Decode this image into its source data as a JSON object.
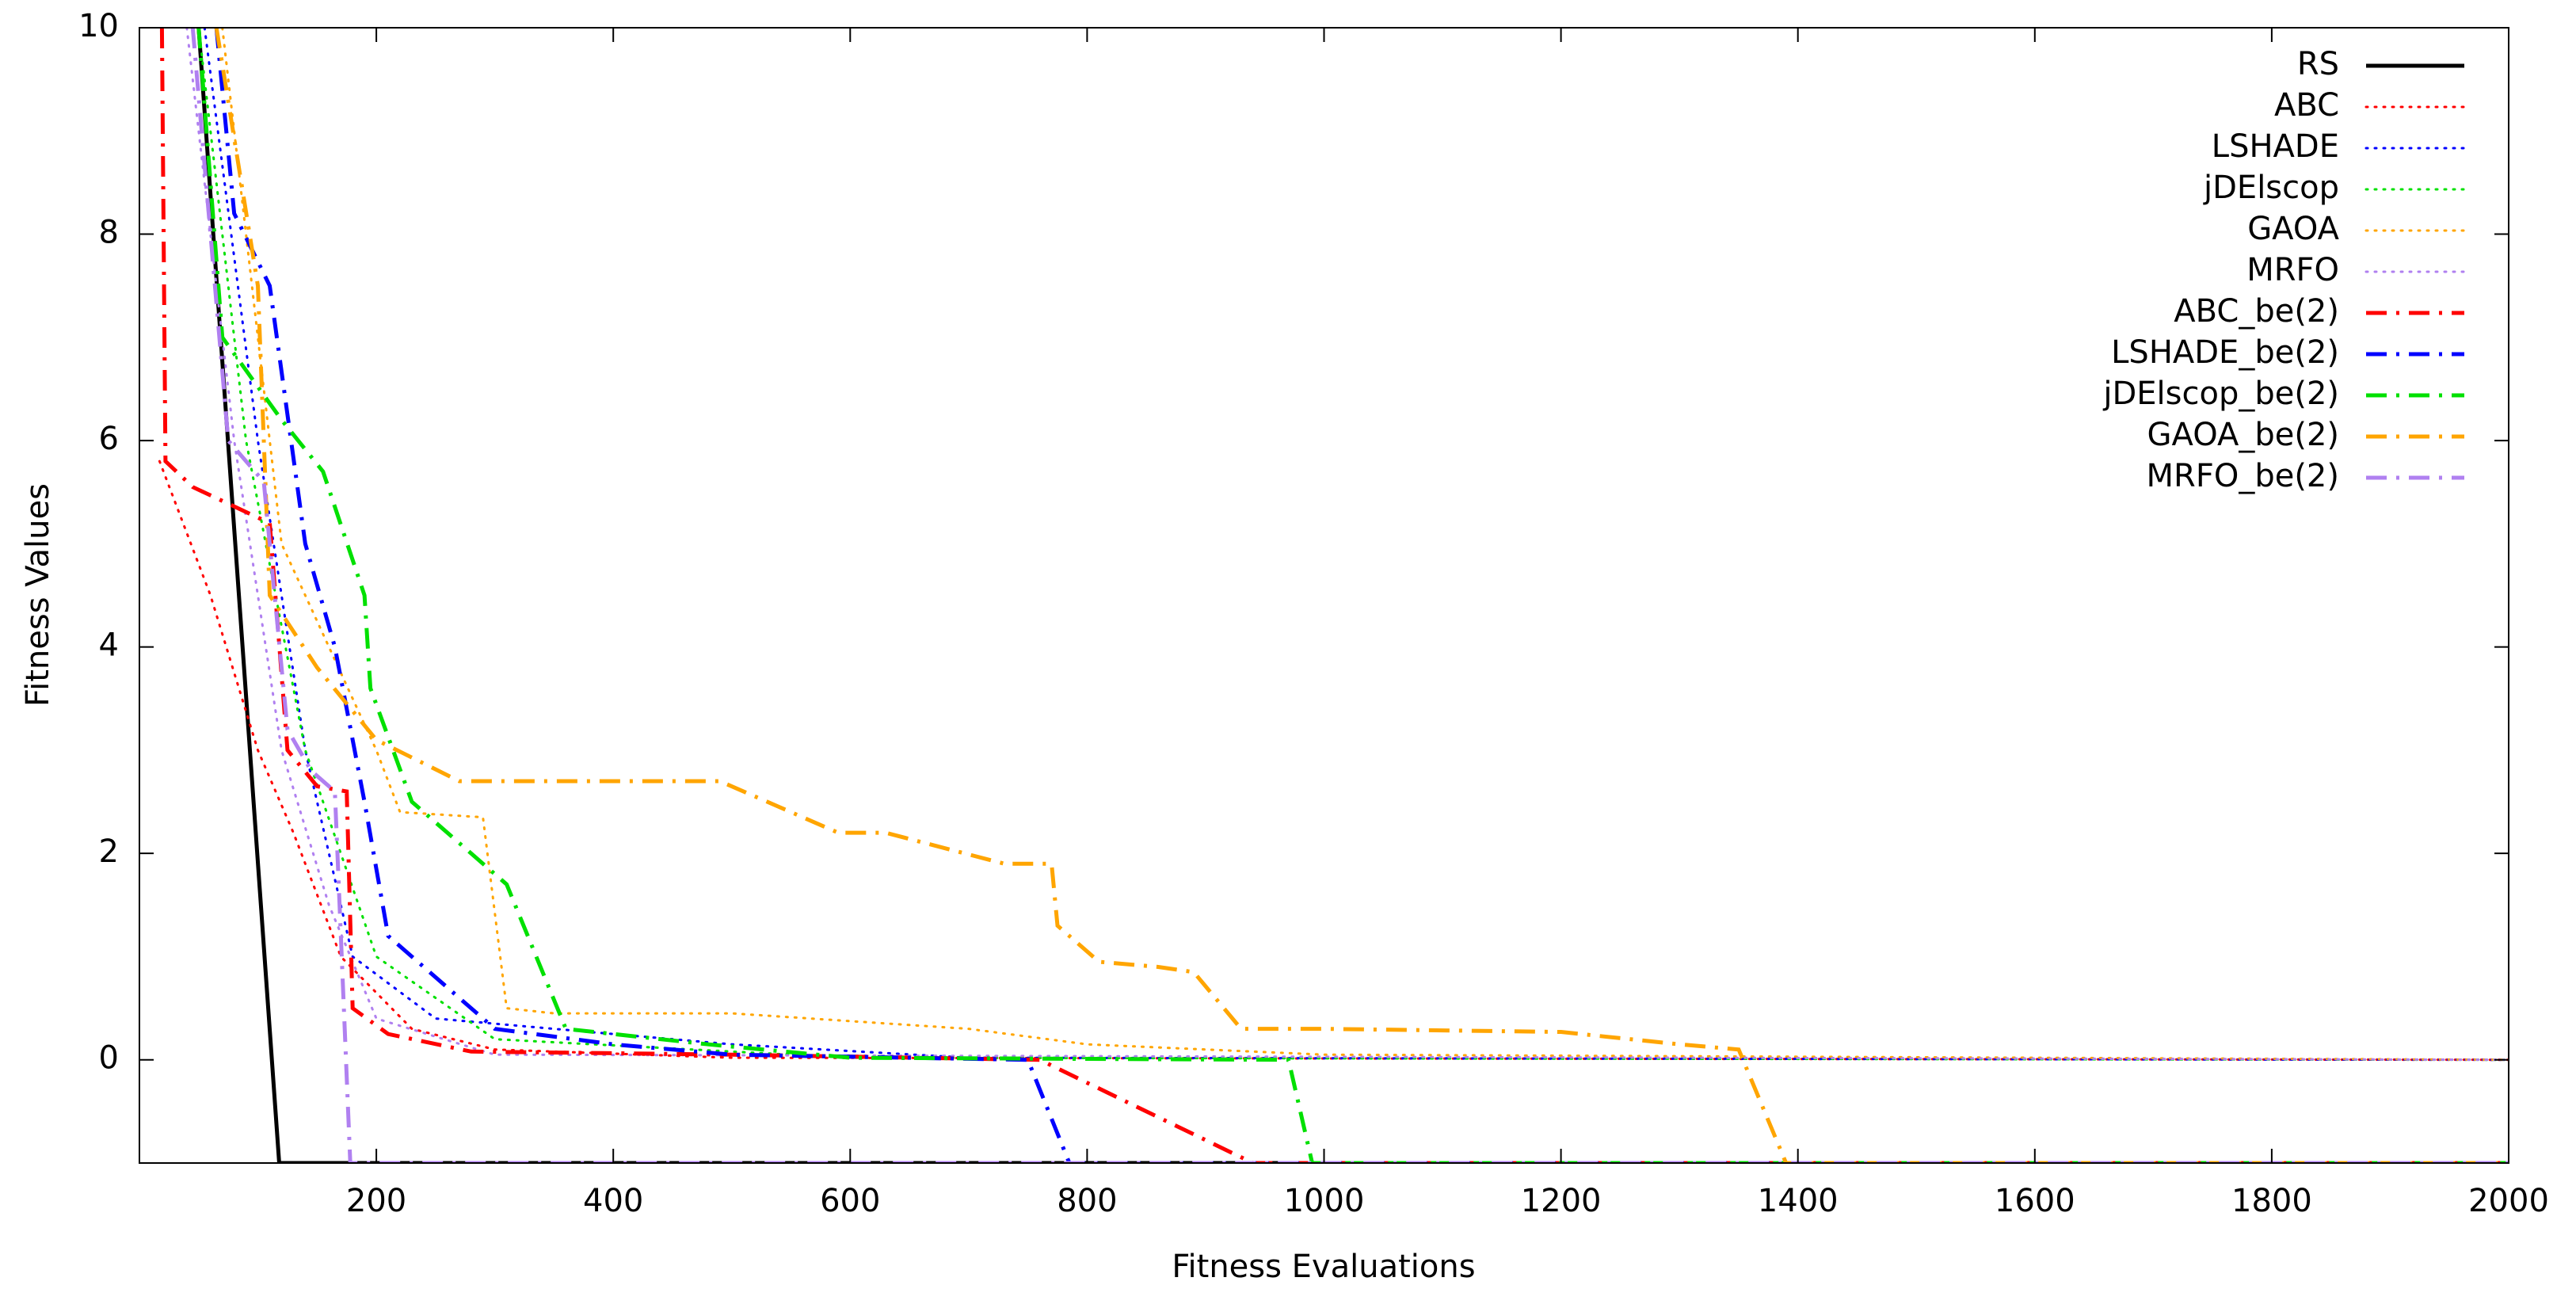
{
  "chart_data": {
    "type": "line",
    "xlabel": "Fitness Evaluations",
    "ylabel": "Fitness Values",
    "xlim": [
      0,
      2000
    ],
    "xticks": [
      200,
      400,
      600,
      800,
      1000,
      1200,
      1400,
      1600,
      1800,
      2000
    ],
    "ylim": [
      -1,
      10
    ],
    "yticks": [
      0,
      2,
      4,
      6,
      8,
      10
    ],
    "legend": "top-right",
    "series": [
      {
        "name": "RS",
        "color": "#000000",
        "style": "solid",
        "x": [
          50,
          118,
          2000
        ],
        "values": [
          10,
          -1,
          -1
        ]
      },
      {
        "name": "ABC",
        "color": "#ff0000",
        "style": "dotted",
        "x": [
          17,
          60,
          100,
          130,
          170,
          230,
          300,
          500,
          2000
        ],
        "values": [
          5.8,
          4.5,
          3.0,
          2.2,
          1.0,
          0.3,
          0.1,
          0.02,
          0
        ]
      },
      {
        "name": "LSHADE",
        "color": "#0000ff",
        "style": "dotted",
        "x": [
          55,
          100,
          140,
          180,
          250,
          400,
          500,
          700,
          2000
        ],
        "values": [
          10,
          6,
          3,
          1.0,
          0.4,
          0.25,
          0.15,
          0.02,
          0
        ]
      },
      {
        "name": "jDElscop",
        "color": "#00e000",
        "style": "dotted",
        "x": [
          50,
          90,
          140,
          200,
          300,
          600,
          2000
        ],
        "values": [
          10,
          6,
          3,
          1,
          0.2,
          0.02,
          0
        ]
      },
      {
        "name": "GAOA",
        "color": "#ffa500",
        "style": "dotted",
        "x": [
          70,
          120,
          200,
          220,
          290,
          310,
          350,
          500,
          700,
          800,
          1000,
          2000
        ],
        "values": [
          10,
          5,
          3,
          2.4,
          2.35,
          0.5,
          0.45,
          0.45,
          0.3,
          0.15,
          0.05,
          0
        ]
      },
      {
        "name": "MRFO",
        "color": "#b080f0",
        "style": "dotted",
        "x": [
          40,
          80,
          120,
          160,
          200,
          300,
          2000
        ],
        "values": [
          10,
          6,
          3,
          1.5,
          0.4,
          0.05,
          0
        ]
      },
      {
        "name": "ABC_be(2)",
        "color": "#ff0000",
        "style": "dashdot",
        "x": [
          19,
          22,
          45,
          110,
          125,
          150,
          175,
          180,
          210,
          280,
          500,
          760,
          940,
          2000
        ],
        "values": [
          10,
          5.8,
          5.55,
          5.2,
          3.0,
          2.65,
          2.6,
          0.5,
          0.25,
          0.08,
          0.05,
          0,
          -1,
          -1
        ]
      },
      {
        "name": "LSHADE_be(2)",
        "color": "#0000ff",
        "style": "dashdot",
        "x": [
          65,
          80,
          110,
          140,
          165,
          190,
          210,
          300,
          400,
          500,
          750,
          785,
          2000
        ],
        "values": [
          10,
          8.2,
          7.5,
          5,
          4,
          2.5,
          1.2,
          0.3,
          0.15,
          0.05,
          0,
          -1,
          -1
        ]
      },
      {
        "name": "jDElscop_be(2)",
        "color": "#00e000",
        "style": "dashdot",
        "x": [
          50,
          70,
          120,
          155,
          190,
          195,
          230,
          310,
          360,
          480,
          600,
          970,
          990,
          2000
        ],
        "values": [
          10,
          7,
          6.2,
          5.7,
          4.5,
          3.6,
          2.5,
          1.7,
          0.3,
          0.15,
          0.02,
          0,
          -1,
          -1
        ]
      },
      {
        "name": "GAOA_be(2)",
        "color": "#ffa500",
        "style": "dashdot",
        "x": [
          65,
          100,
          110,
          150,
          200,
          270,
          490,
          590,
          630,
          730,
          770,
          775,
          810,
          860,
          890,
          930,
          1000,
          1200,
          1300,
          1350,
          1390,
          2000
        ],
        "values": [
          10,
          7.5,
          4.5,
          3.8,
          3.1,
          2.7,
          2.7,
          2.2,
          2.2,
          1.9,
          1.9,
          1.3,
          0.95,
          0.9,
          0.85,
          0.3,
          0.3,
          0.27,
          0.15,
          0.1,
          -1,
          -1
        ]
      },
      {
        "name": "MRFO_be(2)",
        "color": "#b080f0",
        "style": "dashdot",
        "x": [
          45,
          75,
          105,
          125,
          145,
          165,
          178,
          2000
        ],
        "values": [
          10,
          6,
          5.6,
          3.2,
          2.8,
          2.6,
          -1,
          -1
        ]
      }
    ]
  }
}
